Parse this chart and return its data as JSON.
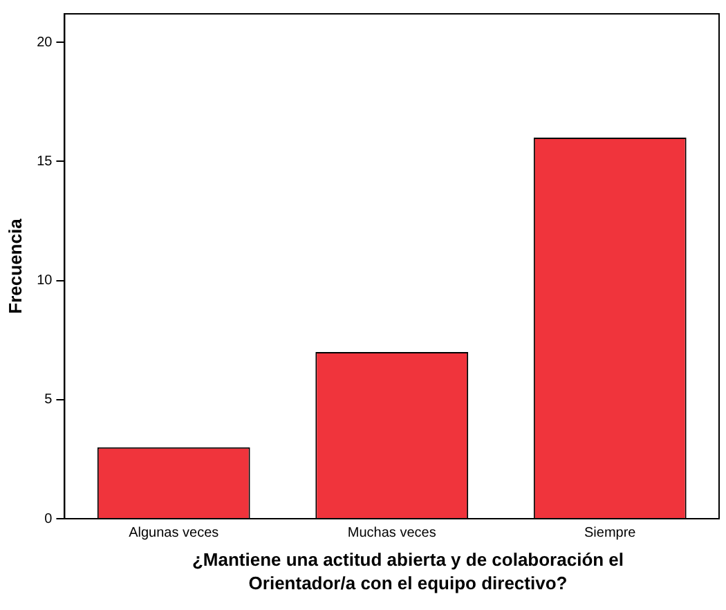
{
  "chart_data": {
    "type": "bar",
    "xlabel": "¿Mantiene una actitud abierta y de colaboración el Orientador/a con el equipo directivo?",
    "ylabel": "Frecuencia",
    "categories": [
      "Algunas veces",
      "Muchas veces",
      "Siempre"
    ],
    "values": [
      3,
      7,
      16
    ],
    "color": "#f0343c",
    "ylim": [
      0,
      21.2
    ],
    "yticks": [
      0,
      5,
      10,
      15,
      20
    ],
    "grid": false,
    "legend": false
  }
}
